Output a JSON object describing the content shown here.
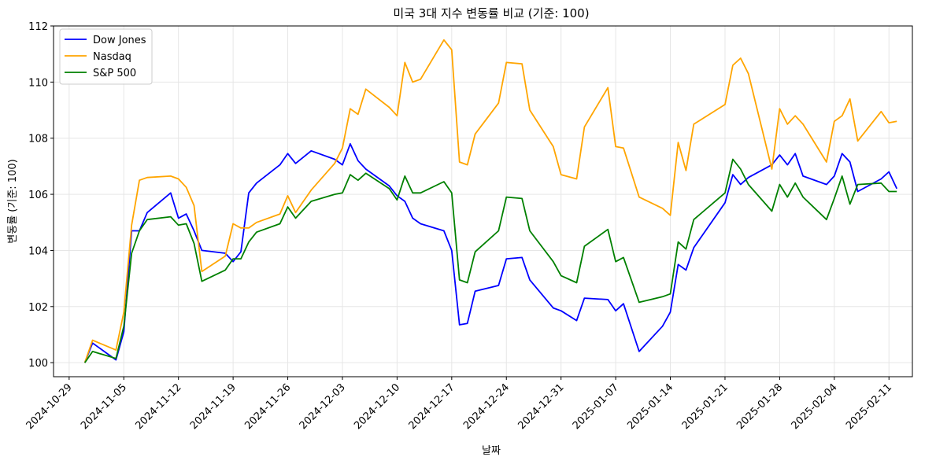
{
  "chart_data": {
    "type": "line",
    "title": "미국 3대 지수 변동률 비교 (기준: 100)",
    "xlabel": "날짜",
    "ylabel": "변동률 (기준: 100)",
    "ylim": [
      99.5,
      112
    ],
    "grid": true,
    "legend_position": "top-left",
    "x_ticks": [
      "2024-10-29",
      "2024-11-05",
      "2024-11-12",
      "2024-11-19",
      "2024-11-26",
      "2024-12-03",
      "2024-12-10",
      "2024-12-17",
      "2024-12-24",
      "2024-12-31",
      "2025-01-07",
      "2025-01-14",
      "2025-01-21",
      "2025-01-28",
      "2025-02-04",
      "2025-02-11"
    ],
    "y_ticks": [
      100,
      102,
      104,
      106,
      108,
      110,
      112
    ],
    "x": [
      "2024-10-31",
      "2024-11-01",
      "2024-11-04",
      "2024-11-05",
      "2024-11-06",
      "2024-11-07",
      "2024-11-08",
      "2024-11-11",
      "2024-11-12",
      "2024-11-13",
      "2024-11-14",
      "2024-11-15",
      "2024-11-18",
      "2024-11-19",
      "2024-11-20",
      "2024-11-21",
      "2024-11-22",
      "2024-11-25",
      "2024-11-26",
      "2024-11-27",
      "2024-11-29",
      "2024-12-02",
      "2024-12-03",
      "2024-12-04",
      "2024-12-05",
      "2024-12-06",
      "2024-12-09",
      "2024-12-10",
      "2024-12-11",
      "2024-12-12",
      "2024-12-13",
      "2024-12-16",
      "2024-12-17",
      "2024-12-18",
      "2024-12-19",
      "2024-12-20",
      "2024-12-23",
      "2024-12-24",
      "2024-12-26",
      "2024-12-27",
      "2024-12-30",
      "2024-12-31",
      "2025-01-02",
      "2025-01-03",
      "2025-01-06",
      "2025-01-07",
      "2025-01-08",
      "2025-01-10",
      "2025-01-13",
      "2025-01-14",
      "2025-01-15",
      "2025-01-16",
      "2025-01-17",
      "2025-01-21",
      "2025-01-22",
      "2025-01-23",
      "2025-01-24",
      "2025-01-27",
      "2025-01-28",
      "2025-01-29",
      "2025-01-30",
      "2025-01-31",
      "2025-02-03",
      "2025-02-04",
      "2025-02-05",
      "2025-02-06",
      "2025-02-07",
      "2025-02-10",
      "2025-02-11",
      "2025-02-12"
    ],
    "series": [
      {
        "name": "Dow Jones",
        "color": "#0000ff",
        "values": [
          100.0,
          100.7,
          100.1,
          101.1,
          104.7,
          104.7,
          105.35,
          106.05,
          105.15,
          105.3,
          104.7,
          104.0,
          103.9,
          103.6,
          103.95,
          106.05,
          106.4,
          107.05,
          107.45,
          107.1,
          107.55,
          107.25,
          107.05,
          107.8,
          107.2,
          106.9,
          106.3,
          105.95,
          105.75,
          105.15,
          104.95,
          104.7,
          104.0,
          101.35,
          101.4,
          102.55,
          102.75,
          103.7,
          103.75,
          102.95,
          101.95,
          101.85,
          101.5,
          102.3,
          102.25,
          101.85,
          102.1,
          100.4,
          101.3,
          101.8,
          103.5,
          103.3,
          104.1,
          105.7,
          106.7,
          106.35,
          106.6,
          107.05,
          107.4,
          107.05,
          107.45,
          106.65,
          106.35,
          106.65,
          107.45,
          107.15,
          106.1,
          106.55,
          106.8,
          106.2
        ]
      },
      {
        "name": "Nasdaq",
        "color": "#ffa500",
        "values": [
          100.0,
          100.8,
          100.45,
          101.8,
          104.9,
          106.5,
          106.6,
          106.65,
          106.55,
          106.25,
          105.6,
          103.25,
          103.8,
          104.95,
          104.8,
          104.8,
          105.0,
          105.3,
          105.95,
          105.35,
          106.15,
          107.1,
          107.65,
          109.05,
          108.85,
          109.75,
          109.1,
          108.8,
          110.7,
          110.0,
          110.1,
          111.5,
          111.15,
          107.15,
          107.05,
          108.15,
          109.25,
          110.7,
          110.65,
          109.0,
          107.7,
          106.7,
          106.55,
          108.4,
          109.8,
          107.7,
          107.65,
          105.9,
          105.5,
          105.25,
          107.85,
          106.85,
          108.5,
          109.2,
          110.6,
          110.85,
          110.3,
          106.9,
          109.05,
          108.5,
          108.8,
          108.5,
          107.15,
          108.6,
          108.8,
          109.4,
          107.9,
          108.95,
          108.55,
          108.6
        ]
      },
      {
        "name": "S&P 500",
        "color": "#008000",
        "values": [
          100.0,
          100.4,
          100.15,
          101.3,
          103.9,
          104.7,
          105.1,
          105.2,
          104.9,
          104.95,
          104.25,
          102.9,
          103.3,
          103.7,
          103.7,
          104.3,
          104.65,
          104.95,
          105.55,
          105.15,
          105.75,
          106.0,
          106.05,
          106.7,
          106.5,
          106.75,
          106.2,
          105.8,
          106.65,
          106.05,
          106.05,
          106.45,
          106.05,
          102.95,
          102.85,
          103.95,
          104.7,
          105.9,
          105.85,
          104.7,
          103.6,
          103.1,
          102.85,
          104.15,
          104.75,
          103.6,
          103.75,
          102.15,
          102.35,
          102.45,
          104.3,
          104.05,
          105.1,
          106.05,
          107.25,
          106.9,
          106.35,
          105.4,
          106.35,
          105.9,
          106.4,
          105.9,
          105.1,
          105.85,
          106.65,
          105.65,
          106.35,
          106.4,
          106.1,
          106.1
        ]
      }
    ]
  }
}
